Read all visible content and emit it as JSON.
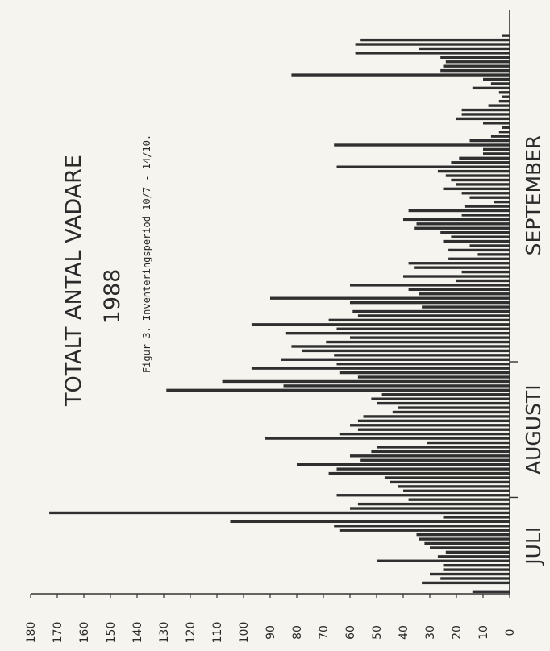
{
  "chart_data": {
    "type": "bar",
    "title": "TOTALT ANTAL VADARE",
    "subtitle": "1988",
    "caption": "Figur 3.  Inventeringsperiod 10/7 - 14/10.",
    "ylim": [
      0,
      180
    ],
    "yticks": [
      0,
      10,
      20,
      30,
      40,
      50,
      60,
      70,
      80,
      90,
      100,
      110,
      120,
      130,
      140,
      150,
      160,
      170,
      180
    ],
    "months": [
      {
        "label": "JULI",
        "start_day": 1
      },
      {
        "label": "AUGUSTI",
        "start_day": 23
      },
      {
        "label": "SEPTEMBER",
        "start_day": 54
      }
    ],
    "values": [
      14,
      0,
      33,
      26,
      30,
      25,
      25,
      50,
      27,
      24,
      30,
      32,
      34,
      35,
      64,
      66,
      105,
      25,
      173,
      60,
      57,
      38,
      65,
      40,
      42,
      45,
      47,
      68,
      65,
      80,
      56,
      60,
      52,
      50,
      31,
      92,
      64,
      57,
      60,
      57,
      55,
      44,
      42,
      50,
      52,
      48,
      129,
      85,
      108,
      57,
      64,
      97,
      65,
      86,
      66,
      78,
      82,
      69,
      60,
      84,
      65,
      97,
      68,
      57,
      59,
      33,
      60,
      90,
      34,
      38,
      60,
      20,
      40,
      18,
      36,
      38,
      23,
      12,
      23,
      15,
      25,
      22,
      26,
      36,
      35,
      40,
      18,
      38,
      17,
      6,
      15,
      18,
      25,
      20,
      22,
      24,
      27,
      65,
      22,
      19,
      10,
      10,
      66,
      15,
      7,
      4,
      3,
      10,
      20,
      18,
      18,
      8,
      4,
      3,
      4,
      14,
      7,
      10,
      82,
      26,
      25,
      24,
      26,
      58,
      34,
      58,
      56,
      3,
      0
    ]
  }
}
